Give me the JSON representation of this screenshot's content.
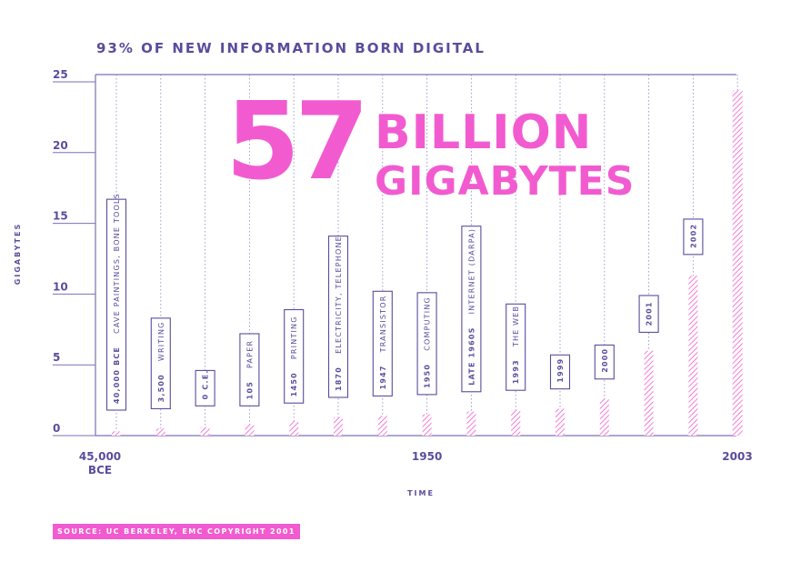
{
  "headline": {
    "number": "57",
    "line1": "BILLION",
    "line2": "GIGABYTES"
  },
  "source": "SOURCE: UC BERKELEY, EMC COPYRIGHT 2001",
  "colors": {
    "accent": "#f25bd0",
    "primary": "#5b4c9c",
    "axis": "#7d6fb8"
  },
  "chart_data": {
    "type": "bar",
    "title": "93% OF NEW INFORMATION BORN DIGITAL",
    "xlabel": "TIME",
    "ylabel": "GIGABYTES",
    "ylim": [
      0,
      25
    ],
    "yticks": [
      0,
      5,
      10,
      15,
      20,
      25
    ],
    "xticks": [
      {
        "label": "45,000",
        "label2": "BCE",
        "index": 0
      },
      {
        "label": "1950",
        "index": 7
      },
      {
        "label": "2003",
        "index": 14
      }
    ],
    "grid": "vertical dotted lines per category",
    "bar_style": "hatched",
    "values": [
      0.3,
      0.5,
      0.6,
      0.8,
      1.0,
      1.3,
      1.4,
      1.5,
      1.7,
      1.8,
      1.9,
      2.6,
      6.0,
      11.3,
      24.4
    ],
    "annotations": [
      {
        "index": 0,
        "year": "40,000 BCE",
        "event": "CAVE PAINTINGS, BONE TOOLS",
        "top": 16.7,
        "bottom": 1.8
      },
      {
        "index": 1,
        "year": "3,500",
        "event": "WRITING",
        "top": 8.3,
        "bottom": 1.9
      },
      {
        "index": 2,
        "year": "0 C.E.",
        "event": "",
        "top": 4.6,
        "bottom": 2.1
      },
      {
        "index": 3,
        "year": "105",
        "event": "PAPER",
        "top": 7.2,
        "bottom": 2.1
      },
      {
        "index": 4,
        "year": "1450",
        "event": "PRINTING",
        "top": 8.9,
        "bottom": 2.3
      },
      {
        "index": 5,
        "year": "1870",
        "event": "ELECTRICITY, TELEPHONE",
        "top": 14.1,
        "bottom": 2.7
      },
      {
        "index": 6,
        "year": "1947",
        "event": "TRANSISTOR",
        "top": 10.2,
        "bottom": 2.8
      },
      {
        "index": 7,
        "year": "1950",
        "event": "COMPUTING",
        "top": 10.1,
        "bottom": 2.9
      },
      {
        "index": 8,
        "year": "LATE 1960S",
        "event": "INTERNET (DARPA)",
        "top": 14.8,
        "bottom": 3.1
      },
      {
        "index": 9,
        "year": "1993",
        "event": "THE WEB",
        "top": 9.3,
        "bottom": 3.2
      },
      {
        "index": 10,
        "year": "1999",
        "event": "",
        "top": 5.7,
        "bottom": 3.3
      },
      {
        "index": 11,
        "year": "2000",
        "event": "",
        "top": 6.4,
        "bottom": 4.0
      },
      {
        "index": 12,
        "year": "2001",
        "event": "",
        "top": 9.9,
        "bottom": 7.3
      },
      {
        "index": 13,
        "year": "2002",
        "event": "",
        "top": 15.3,
        "bottom": 12.8
      }
    ]
  }
}
